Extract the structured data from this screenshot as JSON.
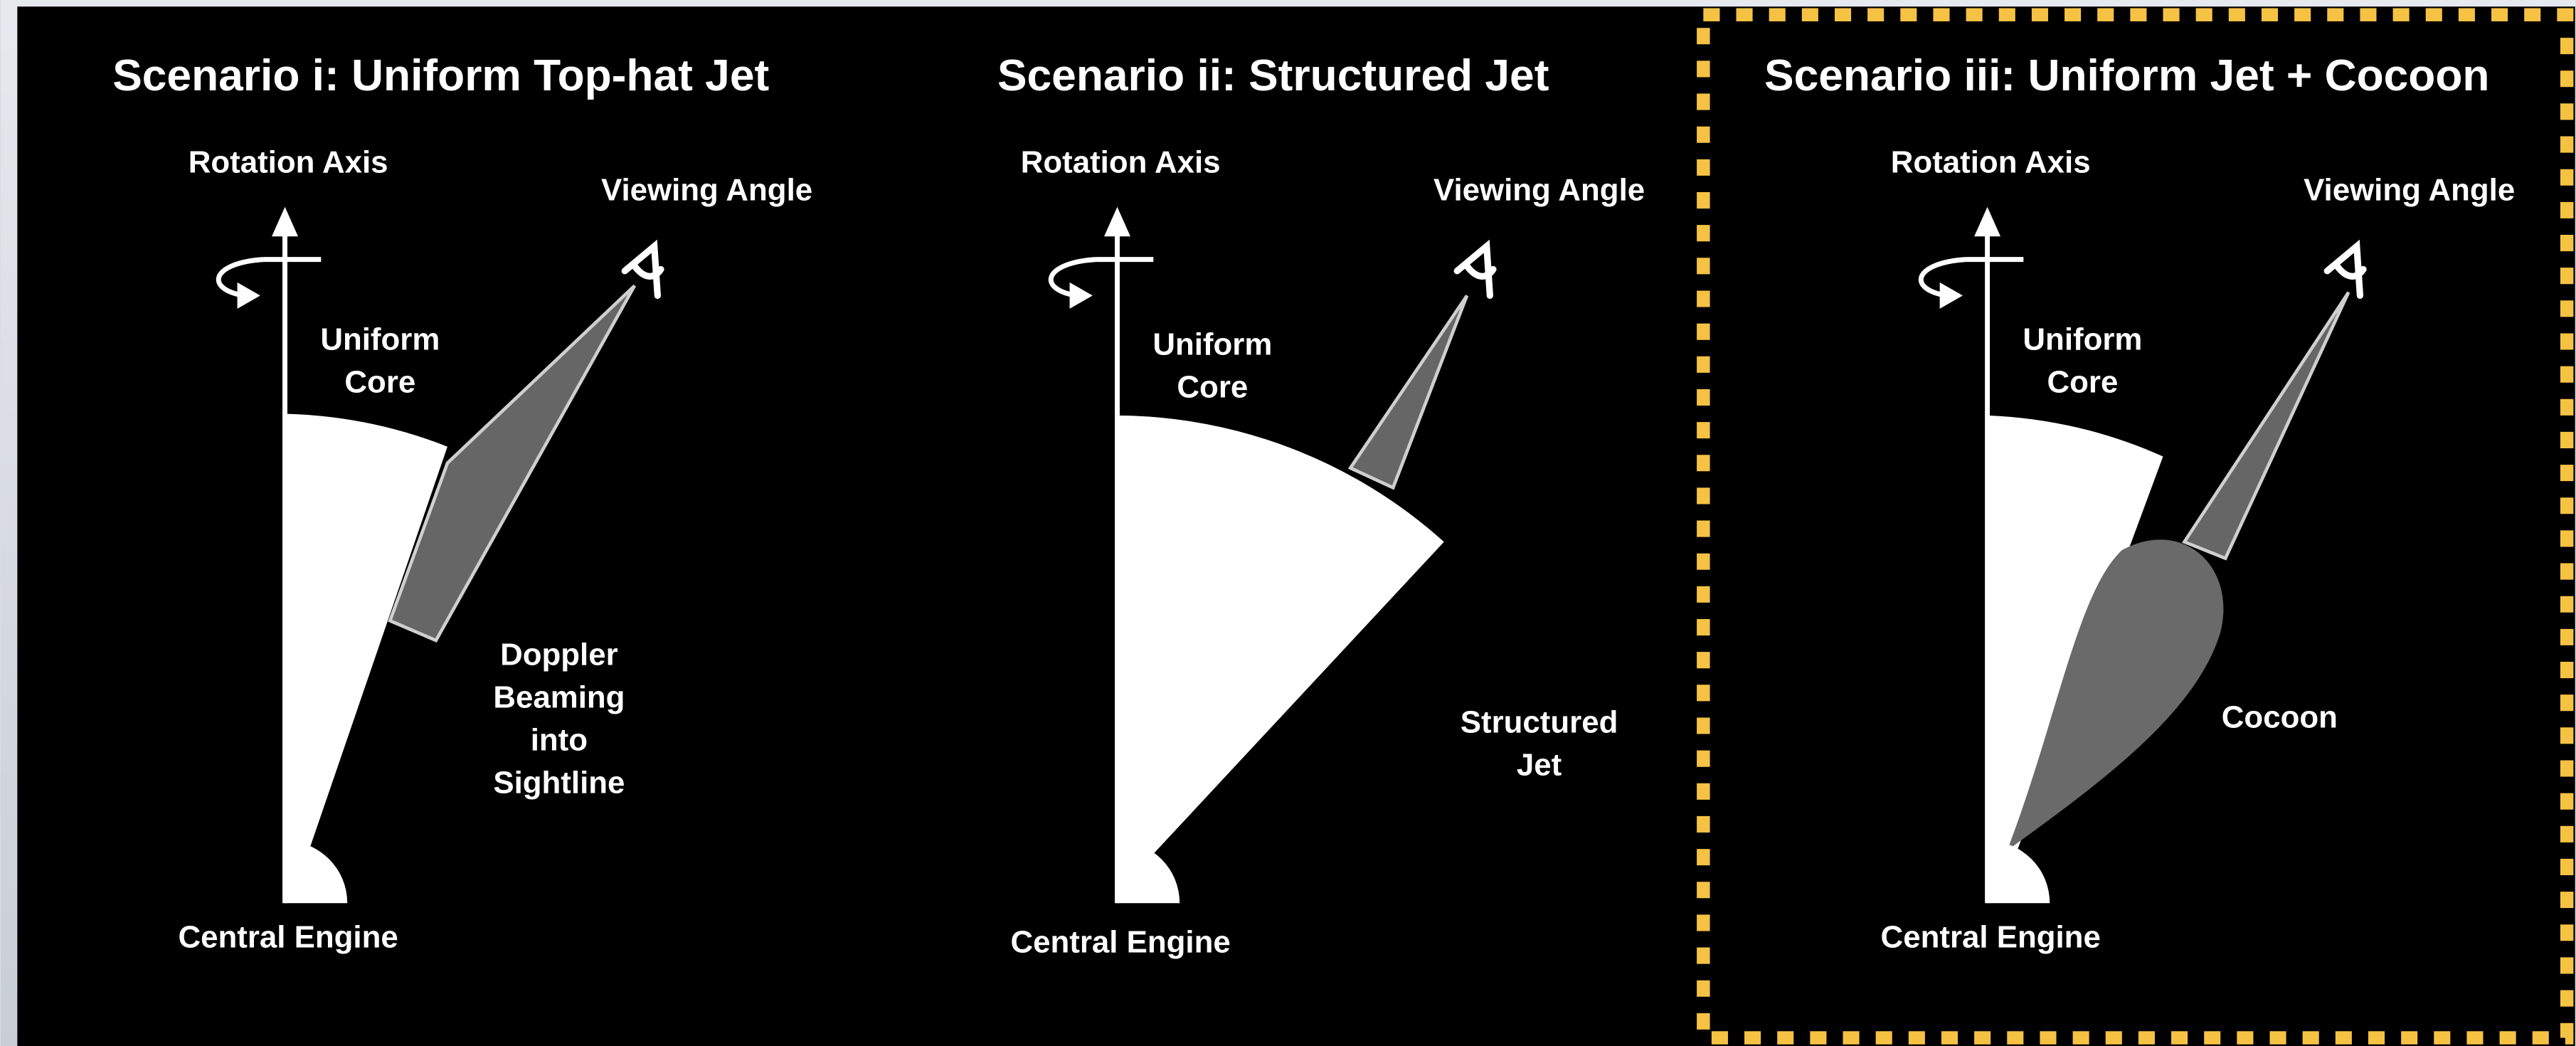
{
  "panels": [
    {
      "title": "Scenario i: Uniform Top-hat Jet",
      "rotation_axis": "Rotation Axis",
      "viewing_angle": "Viewing Angle",
      "core_label": [
        "Uniform",
        "Core"
      ],
      "feature_label": [
        "Doppler",
        "Beaming",
        "into",
        "Sightline"
      ],
      "engine_label": "Central Engine"
    },
    {
      "title": "Scenario ii: Structured Jet",
      "rotation_axis": "Rotation Axis",
      "viewing_angle": "Viewing Angle",
      "core_label": [
        "Uniform",
        "Core"
      ],
      "feature_label": [
        "Structured",
        "Jet"
      ],
      "engine_label": "Central Engine"
    },
    {
      "title": "Scenario iii: Uniform Jet + Cocoon",
      "rotation_axis": "Rotation Axis",
      "viewing_angle": "Viewing Angle",
      "core_label": [
        "Uniform",
        "Core"
      ],
      "feature_label": [
        "Cocoon"
      ],
      "engine_label": "Central Engine"
    }
  ]
}
